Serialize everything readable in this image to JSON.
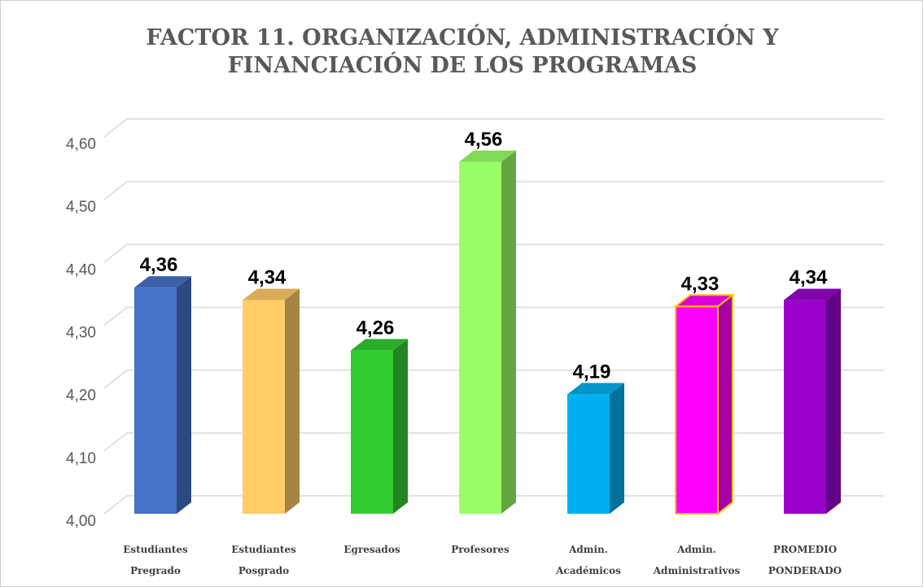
{
  "chart_data": {
    "type": "bar3d",
    "title": [
      "FACTOR 11. ORGANIZACIÓN, ADMINISTRACIÓN Y",
      "FINANCIACIÓN DE LOS  PROGRAMAS"
    ],
    "categories": [
      "Estudiantes Pregrado",
      "Estudiantes Posgrado",
      "Egresados",
      "Profesores",
      "Admin. Académicos",
      "Admin. Administrativos",
      "PROMEDIO PONDERADO"
    ],
    "values": [
      4.36,
      4.34,
      4.26,
      4.56,
      4.19,
      4.33,
      4.34
    ],
    "value_labels": [
      "4,36",
      "4,34",
      "4,26",
      "4,56",
      "4,19",
      "4,33",
      "4,34"
    ],
    "colors": [
      "#4472c4",
      "#ffcc66",
      "#33cc33",
      "#99ff66",
      "#00b0f0",
      "#ff00ff",
      "#9900cc"
    ],
    "edge_colors": [
      null,
      null,
      null,
      null,
      null,
      "#ffc000",
      null
    ],
    "ylim": [
      4.0,
      4.6
    ],
    "yticks": [
      {
        "value": 4.0,
        "label": "4,00"
      },
      {
        "value": 4.1,
        "label": "4,10"
      },
      {
        "value": 4.2,
        "label": "4,20"
      },
      {
        "value": 4.3,
        "label": "4,30"
      },
      {
        "value": 4.4,
        "label": "4,40"
      },
      {
        "value": 4.5,
        "label": "4,50"
      },
      {
        "value": 4.6,
        "label": "4,60"
      }
    ],
    "grid": true
  }
}
